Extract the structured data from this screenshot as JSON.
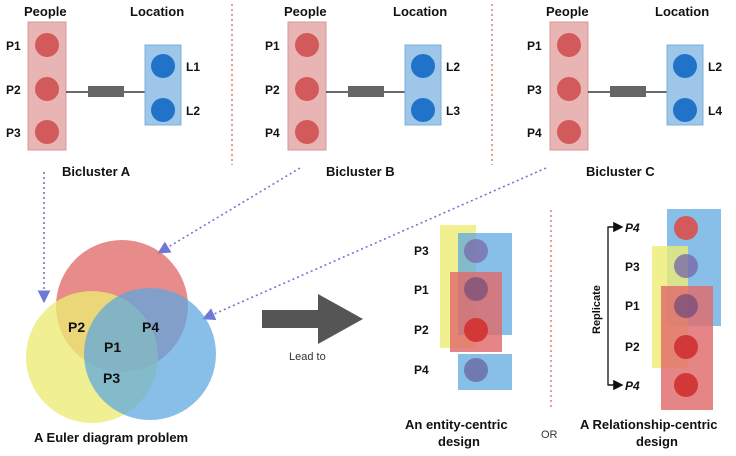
{
  "headers": {
    "people": "People",
    "location": "Location"
  },
  "biclusters": [
    {
      "people": [
        "P1",
        "P2",
        "P3"
      ],
      "locations": [
        "L1",
        "L2"
      ],
      "caption": "Bicluster A"
    },
    {
      "people": [
        "P1",
        "P2",
        "P4"
      ],
      "locations": [
        "L2",
        "L3"
      ],
      "caption": "Bicluster B"
    },
    {
      "people": [
        "P1",
        "P3",
        "P4"
      ],
      "locations": [
        "L2",
        "L4"
      ],
      "caption": "Bicluster C"
    }
  ],
  "euler": {
    "labels": [
      "P2",
      "P4",
      "P1",
      "P3"
    ],
    "caption": "A Euler diagram problem",
    "colors": {
      "red": "#e06a6a",
      "yellow": "#ecec73",
      "blue": "#5aa6e0"
    }
  },
  "arrow_label": "Lead to",
  "entity_centric": {
    "labels": [
      "P3",
      "P1",
      "P2",
      "P4"
    ],
    "caption_line1": "An entity-centric",
    "caption_line2": "design"
  },
  "or_label": "OR",
  "relationship_centric": {
    "labels": [
      "P4",
      "P3",
      "P1",
      "P2",
      "P4"
    ],
    "replicate": "Replicate",
    "caption_line1": "A Relationship-centric",
    "caption_line2": "design"
  }
}
